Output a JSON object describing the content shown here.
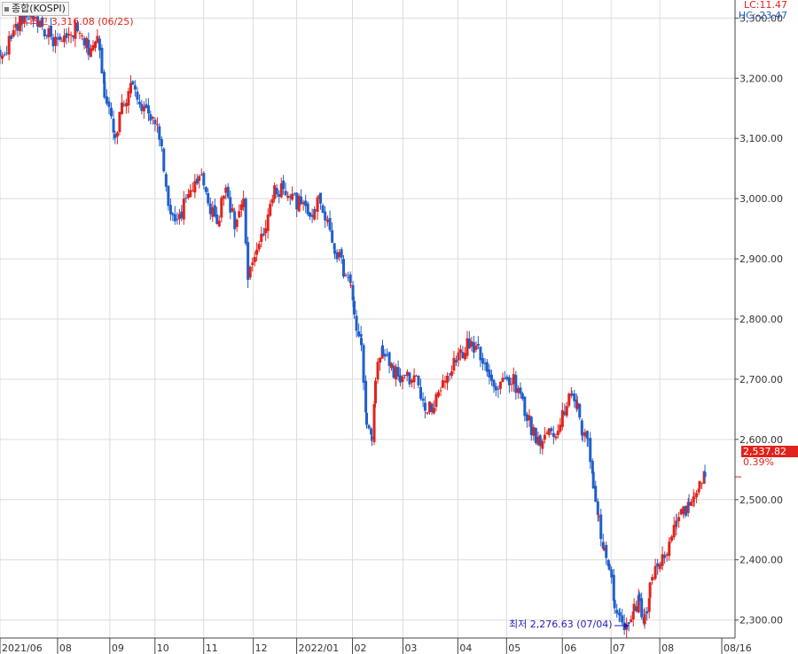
{
  "title": "종합(KOSPI)",
  "lc_label": "LC:11.47",
  "hc_label": "HC:-23.47",
  "last_price_label": "2,537.82",
  "change_label": "0.39%",
  "high_note": "최고 3,316.08 (06/25)",
  "low_note": "최저 2,276.63 (07/04)",
  "colors": {
    "up": "#e0231c",
    "down": "#1f5fcc",
    "grid": "#dcdcdc",
    "axis": "#444444",
    "low_note": "#1f1fb8"
  },
  "chart_data": {
    "type": "candlestick",
    "ylim": [
      2270,
      3330
    ],
    "y_ticks": [
      "3,300.00",
      "3,200.00",
      "3,100.00",
      "3,000.00",
      "2,900.00",
      "2,800.00",
      "2,700.00",
      "2,600.00",
      "2,500.00",
      "2,400.00",
      "2,300.00"
    ],
    "y_tick_values": [
      3300,
      3200,
      3100,
      3000,
      2900,
      2800,
      2700,
      2600,
      2500,
      2400,
      2300
    ],
    "x_ticks": [
      "2021/06",
      "08",
      "09",
      "10",
      "11",
      "12",
      "2022/01",
      "02",
      "03",
      "04",
      "05",
      "06",
      "07",
      "08",
      "08/16"
    ],
    "x_tick_days": [
      0,
      65,
      124,
      175,
      230,
      286,
      335,
      398,
      455,
      517,
      572,
      635,
      690,
      745,
      815
    ],
    "last_price": 2537.82,
    "high": {
      "value": 3316.08,
      "date": "06/25"
    },
    "low": {
      "value": 2276.63,
      "date": "07/04"
    },
    "close_anchors": [
      [
        0,
        3230
      ],
      [
        20,
        3290
      ],
      [
        35,
        3310
      ],
      [
        55,
        3270
      ],
      [
        70,
        3255
      ],
      [
        85,
        3280
      ],
      [
        100,
        3250
      ],
      [
        110,
        3265
      ],
      [
        118,
        3180
      ],
      [
        130,
        3110
      ],
      [
        140,
        3160
      ],
      [
        150,
        3200
      ],
      [
        160,
        3150
      ],
      [
        170,
        3130
      ],
      [
        180,
        3110
      ],
      [
        185,
        3040
      ],
      [
        195,
        2960
      ],
      [
        205,
        2980
      ],
      [
        215,
        3010
      ],
      [
        225,
        3040
      ],
      [
        235,
        2990
      ],
      [
        245,
        2960
      ],
      [
        255,
        3020
      ],
      [
        265,
        2960
      ],
      [
        275,
        2990
      ],
      [
        280,
        2860
      ],
      [
        290,
        2920
      ],
      [
        300,
        2960
      ],
      [
        310,
        3010
      ],
      [
        320,
        3020
      ],
      [
        330,
        3000
      ],
      [
        340,
        2990
      ],
      [
        350,
        2970
      ],
      [
        356,
        2990
      ],
      [
        362,
        3000
      ],
      [
        370,
        2960
      ],
      [
        378,
        2920
      ],
      [
        388,
        2880
      ],
      [
        396,
        2860
      ],
      [
        400,
        2800
      ],
      [
        408,
        2760
      ],
      [
        414,
        2620
      ],
      [
        420,
        2600
      ],
      [
        424,
        2700
      ],
      [
        432,
        2750
      ],
      [
        442,
        2720
      ],
      [
        452,
        2700
      ],
      [
        460,
        2700
      ],
      [
        470,
        2700
      ],
      [
        480,
        2640
      ],
      [
        490,
        2660
      ],
      [
        500,
        2690
      ],
      [
        510,
        2720
      ],
      [
        520,
        2740
      ],
      [
        530,
        2760
      ],
      [
        540,
        2750
      ],
      [
        550,
        2720
      ],
      [
        560,
        2680
      ],
      [
        570,
        2700
      ],
      [
        580,
        2700
      ],
      [
        590,
        2660
      ],
      [
        600,
        2620
      ],
      [
        610,
        2590
      ],
      [
        620,
        2620
      ],
      [
        630,
        2610
      ],
      [
        640,
        2660
      ],
      [
        646,
        2680
      ],
      [
        652,
        2650
      ],
      [
        658,
        2610
      ],
      [
        664,
        2590
      ],
      [
        670,
        2530
      ],
      [
        676,
        2460
      ],
      [
        682,
        2420
      ],
      [
        688,
        2380
      ],
      [
        694,
        2330
      ],
      [
        700,
        2310
      ],
      [
        705,
        2290
      ],
      [
        710,
        2300
      ],
      [
        716,
        2320
      ],
      [
        722,
        2330
      ],
      [
        728,
        2300
      ],
      [
        734,
        2350
      ],
      [
        740,
        2390
      ],
      [
        748,
        2400
      ],
      [
        756,
        2430
      ],
      [
        764,
        2460
      ],
      [
        772,
        2480
      ],
      [
        778,
        2495
      ],
      [
        784,
        2510
      ],
      [
        790,
        2528
      ],
      [
        796,
        2537.82
      ]
    ]
  }
}
